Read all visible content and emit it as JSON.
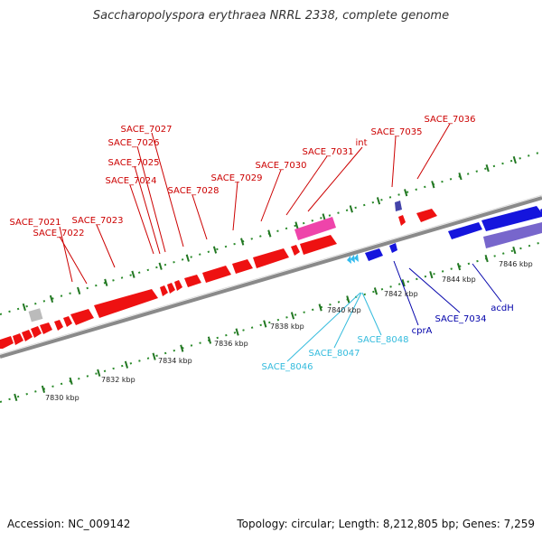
{
  "title": "Saccharopolyspora erythraea NRRL 2338, complete genome",
  "footer": {
    "accession": "Accession: NC_009142",
    "summary": "Topology: circular; Length: 8,212,805 bp; Genes: 7,259"
  },
  "colors": {
    "cds_forward": "#ee1111",
    "cds_reverse": "#1111dd",
    "rna": "#33c3ee",
    "pseudo_pink": "#ee44aa",
    "gray_feature": "#bbbbbb",
    "backbone": "#888888",
    "tick_green": "#227722",
    "label_red": "#cc0000",
    "label_blue": "#0000aa",
    "label_cyan": "#33bbdd"
  },
  "kbp_labels": [
    "7830 kbp",
    "7832 kbp",
    "7834 kbp",
    "7836 kbp",
    "7838 kbp",
    "7840 kbp",
    "7842 kbp",
    "7844 kbp",
    "7846 kbp"
  ],
  "gene_labels": {
    "forward": [
      "SACE_7021",
      "SACE_7022",
      "SACE_7023",
      "SACE_7024",
      "SACE_7025",
      "SACE_7026",
      "SACE_7027",
      "SACE_7028",
      "SACE_7029",
      "SACE_7030",
      "SACE_7031",
      "int",
      "SACE_7035",
      "SACE_7036"
    ],
    "reverse": [
      "SACE_7034",
      "cprA",
      "acdH"
    ],
    "rna": [
      "SACE_8046",
      "SACE_8047",
      "SACE_8048"
    ]
  }
}
